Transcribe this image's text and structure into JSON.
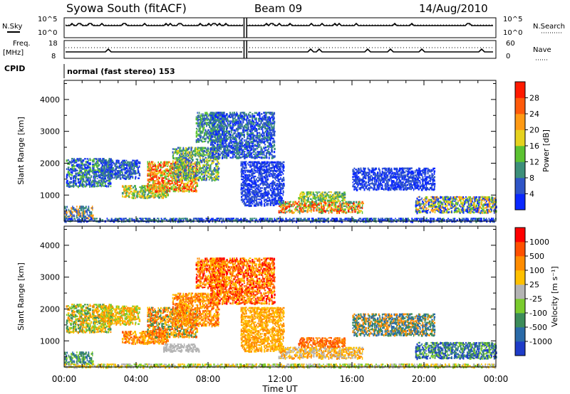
{
  "header": {
    "station": "Syowa South (fitACF)",
    "beam": "Beam 09",
    "date": "14/Aug/2010",
    "cpid_label": "CPID",
    "cpid_value": "normal (fast stereo) 153"
  },
  "strip_top": {
    "left_label": "N.Sky",
    "right_label": "N.Search",
    "left_ticks": [
      "10^5",
      "10^0"
    ],
    "right_ticks": [
      "10^5",
      "10^0"
    ]
  },
  "strip_mid": {
    "left_label_1": "Freq.",
    "left_label_2": "[MHz]",
    "right_label": "Nave",
    "left_ticks": [
      "18",
      "8"
    ],
    "right_ticks": [
      "60",
      "0"
    ]
  },
  "chart_data": [
    {
      "type": "heatmap",
      "variable": "power",
      "ylabel": "Slant Range [km]",
      "xlabel": "",
      "x_ticks": [
        "00:00",
        "04:00",
        "08:00",
        "12:00",
        "16:00",
        "20:00",
        "00:00"
      ],
      "xlim_hours": [
        0,
        24
      ],
      "y_ticks": [
        1000,
        2000,
        3000,
        4000
      ],
      "ylim": [
        180,
        4600
      ],
      "colorbar": {
        "label": "Power [dB]",
        "ticks": [
          "4",
          "8",
          "12",
          "16",
          "20",
          "24",
          "28"
        ],
        "colors": [
          "#0a28ff",
          "#2f55c7",
          "#3d8f7a",
          "#5cc232",
          "#e6d21e",
          "#ff9a14",
          "#ff5a0a",
          "#ff1a00"
        ]
      },
      "regions": [
        {
          "t0": 0.0,
          "t1": 1.6,
          "r0": 300,
          "r1": 700,
          "c": [
            1,
            2,
            5
          ]
        },
        {
          "t0": 0.1,
          "t1": 2.6,
          "r0": 1300,
          "r1": 2200,
          "c": [
            0,
            1,
            2,
            3
          ]
        },
        {
          "t0": 2.0,
          "t1": 4.2,
          "r0": 1550,
          "r1": 2150,
          "c": [
            0,
            1,
            2
          ]
        },
        {
          "t0": 3.2,
          "t1": 5.8,
          "r0": 950,
          "r1": 1350,
          "c": [
            2,
            3,
            4,
            5
          ]
        },
        {
          "t0": 4.6,
          "t1": 7.4,
          "r0": 1150,
          "r1": 2100,
          "c": [
            3,
            4,
            5,
            6,
            7
          ]
        },
        {
          "t0": 6.0,
          "t1": 8.6,
          "r0": 1500,
          "r1": 2550,
          "c": [
            1,
            2,
            3,
            4
          ]
        },
        {
          "t0": 7.3,
          "t1": 8.9,
          "r0": 2700,
          "r1": 3650,
          "c": [
            1,
            2,
            3
          ]
        },
        {
          "t0": 8.1,
          "t1": 11.7,
          "r0": 2200,
          "r1": 3650,
          "c": [
            0,
            1,
            2
          ]
        },
        {
          "t0": 9.8,
          "t1": 12.2,
          "r0": 700,
          "r1": 2100,
          "c": [
            0,
            1
          ]
        },
        {
          "t0": 11.9,
          "t1": 16.6,
          "r0": 480,
          "r1": 850,
          "c": [
            2,
            3,
            4,
            5,
            6,
            7
          ]
        },
        {
          "t0": 13.0,
          "t1": 15.6,
          "r0": 850,
          "r1": 1150,
          "c": [
            2,
            3,
            4
          ]
        },
        {
          "t0": 16.0,
          "t1": 20.6,
          "r0": 1200,
          "r1": 1900,
          "c": [
            0,
            1
          ]
        },
        {
          "t0": 19.5,
          "t1": 24.0,
          "r0": 480,
          "r1": 1000,
          "c": [
            0,
            1,
            3,
            4,
            5
          ]
        },
        {
          "t0": 0.0,
          "t1": 24.0,
          "r0": 200,
          "r1": 320,
          "c": [
            0,
            1,
            2
          ]
        }
      ]
    },
    {
      "type": "heatmap",
      "variable": "velocity",
      "ylabel": "Slant Range [km]",
      "xlabel": "Time UT",
      "x_ticks": [
        "00:00",
        "04:00",
        "08:00",
        "12:00",
        "16:00",
        "20:00",
        "00:00"
      ],
      "xlim_hours": [
        0,
        24
      ],
      "y_ticks": [
        1000,
        2000,
        3000,
        4000
      ],
      "ylim": [
        180,
        4600
      ],
      "colorbar": {
        "label": "Velocity [m s⁻¹]",
        "ticks": [
          "1000",
          "500",
          "100",
          "25",
          "-25",
          "-100",
          "-500",
          "-1000"
        ],
        "colors": [
          "#1e3cc8",
          "#2a6aa8",
          "#3c8c5a",
          "#7acb2e",
          "#b4b4b4",
          "#ffc000",
          "#ff8c00",
          "#ff5000",
          "#ff0000"
        ]
      },
      "regions": [
        {
          "t0": 0.0,
          "t1": 1.6,
          "r0": 300,
          "r1": 700,
          "c": [
            1,
            2,
            3
          ]
        },
        {
          "t0": 0.1,
          "t1": 2.6,
          "r0": 1300,
          "r1": 2200,
          "c": [
            2,
            3,
            5,
            6
          ]
        },
        {
          "t0": 2.0,
          "t1": 4.2,
          "r0": 1550,
          "r1": 2150,
          "c": [
            3,
            5,
            6
          ]
        },
        {
          "t0": 3.2,
          "t1": 5.8,
          "r0": 950,
          "r1": 1350,
          "c": [
            5,
            6,
            7
          ]
        },
        {
          "t0": 4.6,
          "t1": 7.4,
          "r0": 1150,
          "r1": 2100,
          "c": [
            5,
            6,
            7,
            2
          ]
        },
        {
          "t0": 6.0,
          "t1": 8.6,
          "r0": 1500,
          "r1": 2550,
          "c": [
            5,
            6,
            7
          ]
        },
        {
          "t0": 7.3,
          "t1": 8.9,
          "r0": 2700,
          "r1": 3650,
          "c": [
            5,
            6,
            7,
            8
          ]
        },
        {
          "t0": 8.1,
          "t1": 11.7,
          "r0": 2200,
          "r1": 3650,
          "c": [
            6,
            7,
            8,
            5
          ]
        },
        {
          "t0": 9.8,
          "t1": 12.2,
          "r0": 700,
          "r1": 2100,
          "c": [
            5,
            6
          ]
        },
        {
          "t0": 11.9,
          "t1": 16.6,
          "r0": 480,
          "r1": 850,
          "c": [
            5,
            6,
            4
          ]
        },
        {
          "t0": 13.0,
          "t1": 15.6,
          "r0": 850,
          "r1": 1150,
          "c": [
            6,
            7
          ]
        },
        {
          "t0": 16.0,
          "t1": 20.6,
          "r0": 1200,
          "r1": 1900,
          "c": [
            1,
            2,
            6
          ]
        },
        {
          "t0": 19.5,
          "t1": 24.0,
          "r0": 480,
          "r1": 1000,
          "c": [
            0,
            1,
            2,
            3
          ]
        },
        {
          "t0": 5.5,
          "t1": 7.5,
          "r0": 700,
          "r1": 950,
          "c": [
            4
          ]
        },
        {
          "t0": 0.0,
          "t1": 24.0,
          "r0": 200,
          "r1": 320,
          "c": [
            3,
            4,
            5
          ]
        }
      ]
    }
  ]
}
